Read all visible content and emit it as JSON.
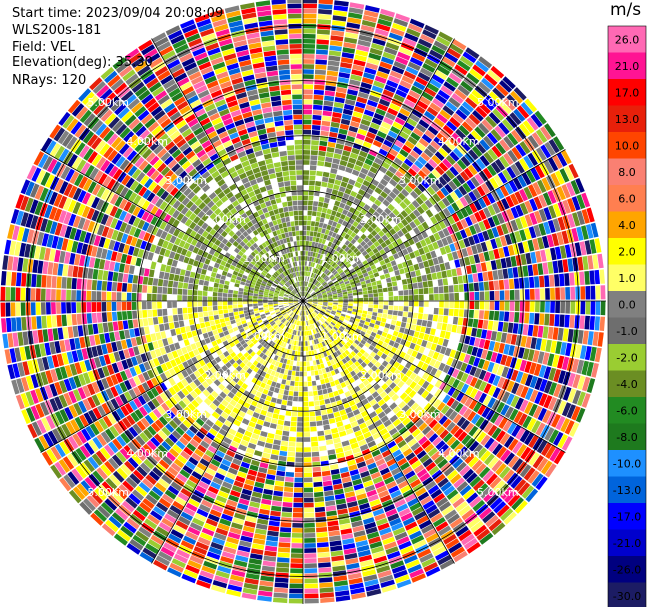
{
  "header": {
    "lines": [
      "Start time: 2023/09/04 20:08:09",
      "WLS200s-181",
      "Field: VEL",
      "Elevation(deg): 35.30",
      "NRays: 120"
    ]
  },
  "colorbar": {
    "unit": "m/s",
    "ticks": [
      "26.0",
      "21.0",
      "17.0",
      "13.0",
      "10.0",
      "8.0",
      "6.0",
      "4.0",
      "2.0",
      "1.0",
      "0.0",
      "-1.0",
      "-2.0",
      "-4.0",
      "-6.0",
      "-8.0",
      "-10.0",
      "-13.0",
      "-17.0",
      "-21.0",
      "-26.0",
      "-30.0"
    ],
    "colors": [
      "#ff69b4",
      "#ff1493",
      "#ff0000",
      "#e8200a",
      "#ff4500",
      "#fa8072",
      "#ff7f50",
      "#ffa500",
      "#ffff00",
      "#ffff66",
      "#808080",
      "#6e6e6e",
      "#9acd32",
      "#6b8e23",
      "#228b22",
      "#1e7a1e",
      "#1e90ff",
      "#0064dc",
      "#0000ff",
      "#0000cd",
      "#000080",
      "#1c1c64"
    ]
  },
  "chart_data": {
    "type": "heatmap",
    "projection": "polar PPI",
    "field": "VEL",
    "units": "m/s",
    "nrays": 120,
    "range_rings": [
      {
        "label": "1.00km",
        "range_km": 1.0
      },
      {
        "label": "2.00km",
        "range_km": 2.0
      },
      {
        "label": "3.00km",
        "range_km": 3.0
      },
      {
        "label": "4.00km",
        "range_km": 4.0
      },
      {
        "label": "5.00km",
        "range_km": 5.0
      }
    ],
    "max_range_km": 5.5,
    "spoke_azimuths_deg": [
      0,
      30,
      60,
      90,
      120,
      150,
      180,
      210,
      240,
      270,
      300,
      330
    ],
    "ring_label_azimuths_deg": [
      -45,
      45,
      135,
      225
    ],
    "inner_region_range_km": 3.0,
    "inner_pattern": [
      {
        "sector_deg": [
          -90,
          90
        ],
        "dominant_values_ms": [
          -2.0,
          -4.0,
          0.0
        ]
      },
      {
        "sector_deg": [
          90,
          270
        ],
        "dominant_values_ms": [
          2.0,
          1.0,
          0.0
        ]
      }
    ],
    "outer_pattern": "noise, all velocity bins"
  }
}
